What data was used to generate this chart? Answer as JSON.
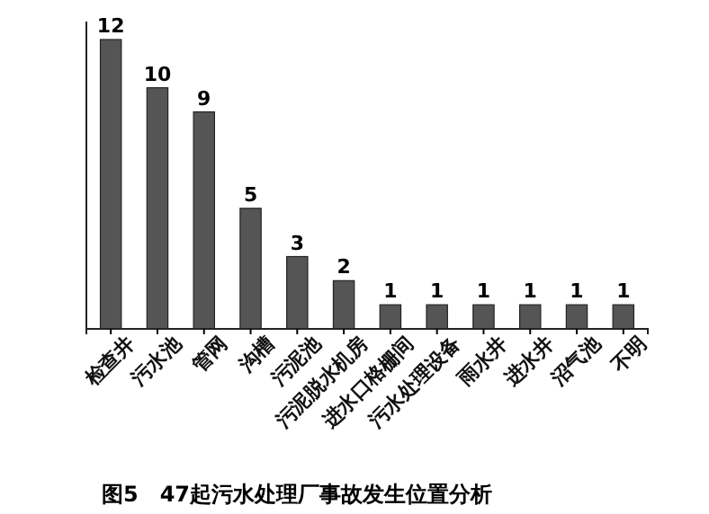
{
  "chart_data": {
    "type": "bar",
    "title": "图5　47起污水处理厂事故发生位置分析",
    "categories": [
      "检查井",
      "污水池",
      "管网",
      "沟槽",
      "污泥池",
      "污泥脱水机房",
      "进水口格栅间",
      "污水处理设备",
      "雨水井",
      "进水井",
      "沼气池",
      "不明"
    ],
    "values": [
      12,
      10,
      9,
      5,
      3,
      2,
      1,
      1,
      1,
      1,
      1,
      1
    ],
    "color": "#555555",
    "data_labels": true
  }
}
